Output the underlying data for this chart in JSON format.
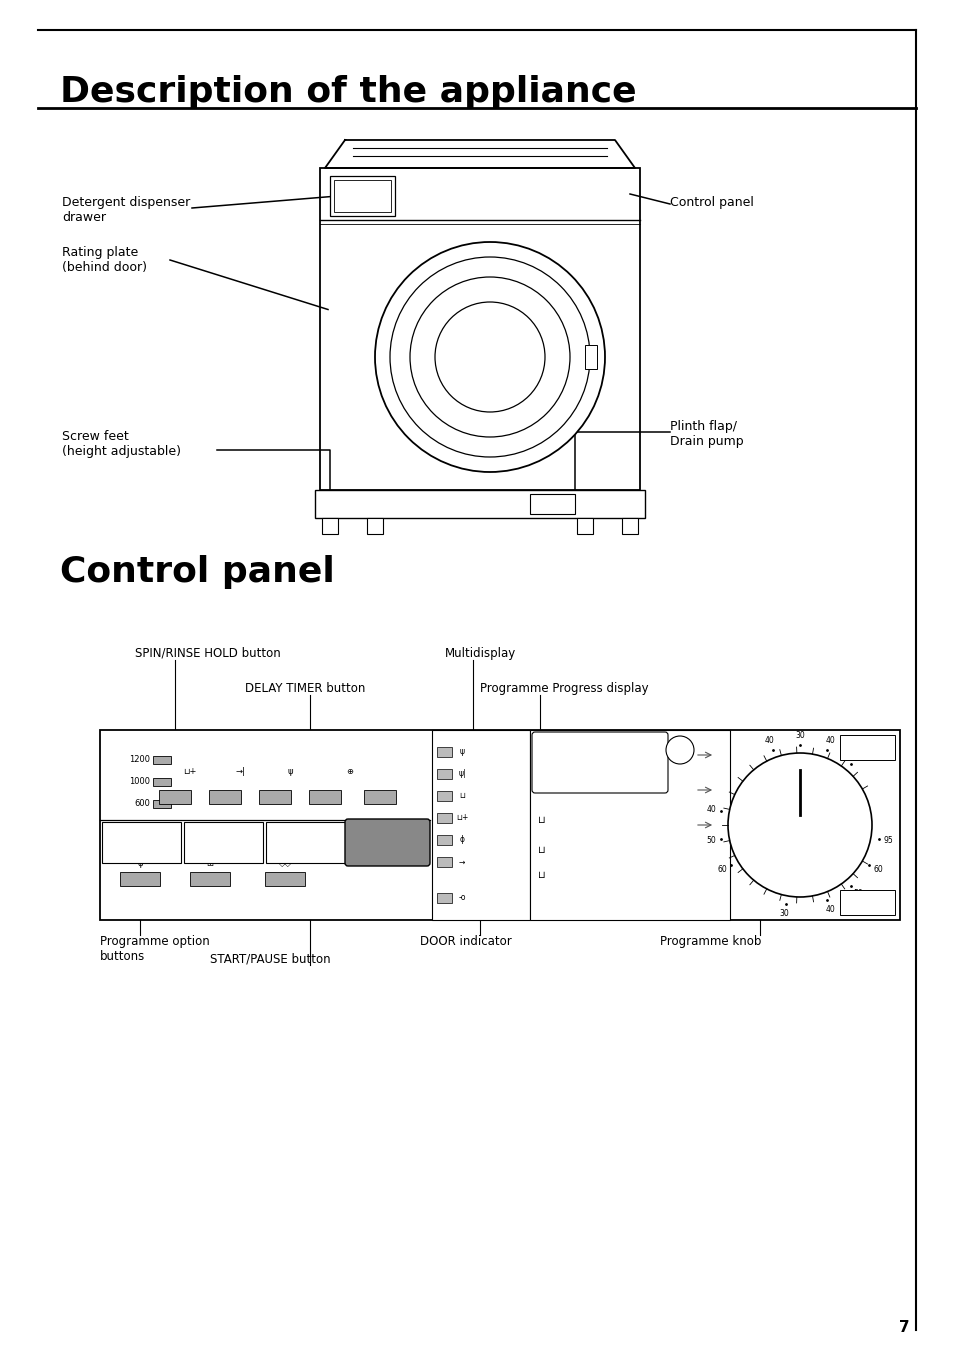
{
  "bg_color": "#ffffff",
  "page_number": "7",
  "section1_title": "Description of the appliance",
  "section2_title": "Control panel",
  "title_fontsize": 26,
  "label_fontsize": 9,
  "cp_label_fontsize": 8.5
}
